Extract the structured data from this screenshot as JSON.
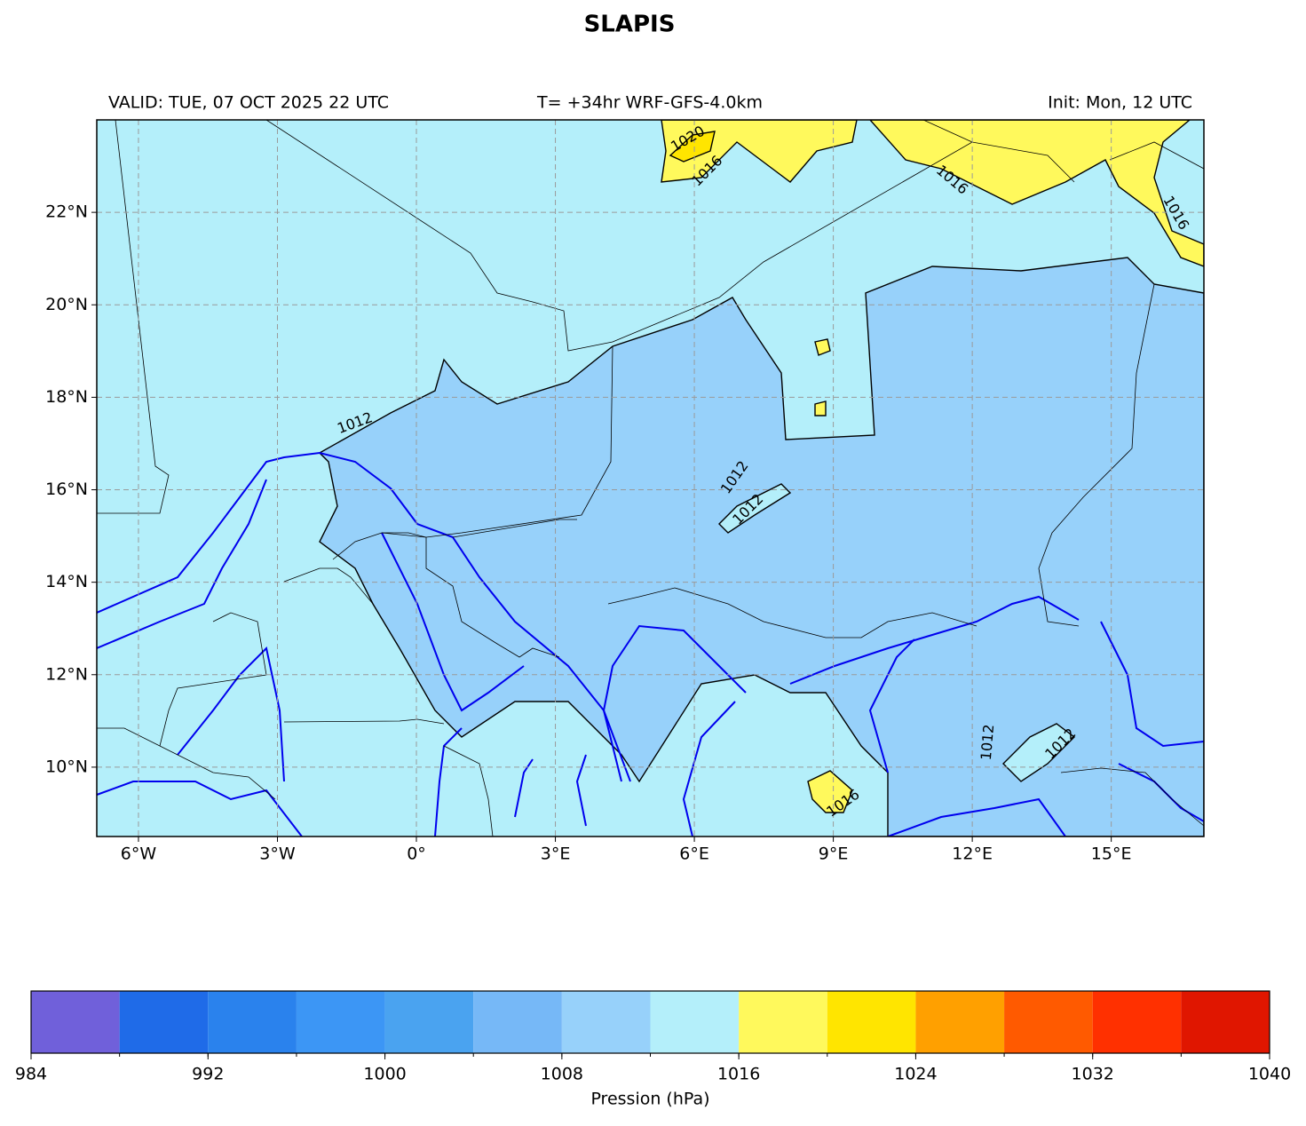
{
  "title": "SLAPIS",
  "valid_text": "VALID: TUE, 07 OCT 2025 22 UTC",
  "run_text": "T= +34hr WRF-GFS-4.0km",
  "init_text": "Init: Mon, 12 UTC",
  "map": {
    "lonlim": [
      -6.9,
      17
    ],
    "latlim": [
      8.5,
      24
    ],
    "xticks": [
      {
        "value": -6,
        "label": "6°W"
      },
      {
        "value": -3,
        "label": "3°W"
      },
      {
        "value": 0,
        "label": "0°"
      },
      {
        "value": 3,
        "label": "3°E"
      },
      {
        "value": 6,
        "label": "6°E"
      },
      {
        "value": 9,
        "label": "9°E"
      },
      {
        "value": 12,
        "label": "12°E"
      },
      {
        "value": 15,
        "label": "15°E"
      }
    ],
    "yticks": [
      {
        "value": 10,
        "label": "10°N"
      },
      {
        "value": 12,
        "label": "12°N"
      },
      {
        "value": 14,
        "label": "14°N"
      },
      {
        "value": 16,
        "label": "16°N"
      },
      {
        "value": 18,
        "label": "18°N"
      },
      {
        "value": 20,
        "label": "20°N"
      },
      {
        "value": 22,
        "label": "22°N"
      }
    ],
    "grid": true
  },
  "contour_labels": [
    "1020",
    "1016",
    "1016",
    "1016",
    "1012",
    "1012",
    "1012",
    "1016",
    "1012",
    "1012"
  ],
  "colorbar": {
    "label": "Pression (hPa)",
    "levels": [
      984,
      988,
      992,
      996,
      1000,
      1004,
      1008,
      1012,
      1016,
      1020,
      1024,
      1028,
      1032,
      1036,
      1040
    ],
    "colors": [
      "#7060da",
      "#1f6be8",
      "#2a82ed",
      "#3c96f5",
      "#4aa3f0",
      "#76b8f7",
      "#97d1fa",
      "#b4effa",
      "#fff95c",
      "#ffe500",
      "#ffa000",
      "#ff5a00",
      "#ff3000",
      "#e01600"
    ],
    "ticks": [
      984,
      992,
      1000,
      1008,
      1016,
      1024,
      1032,
      1040
    ]
  }
}
